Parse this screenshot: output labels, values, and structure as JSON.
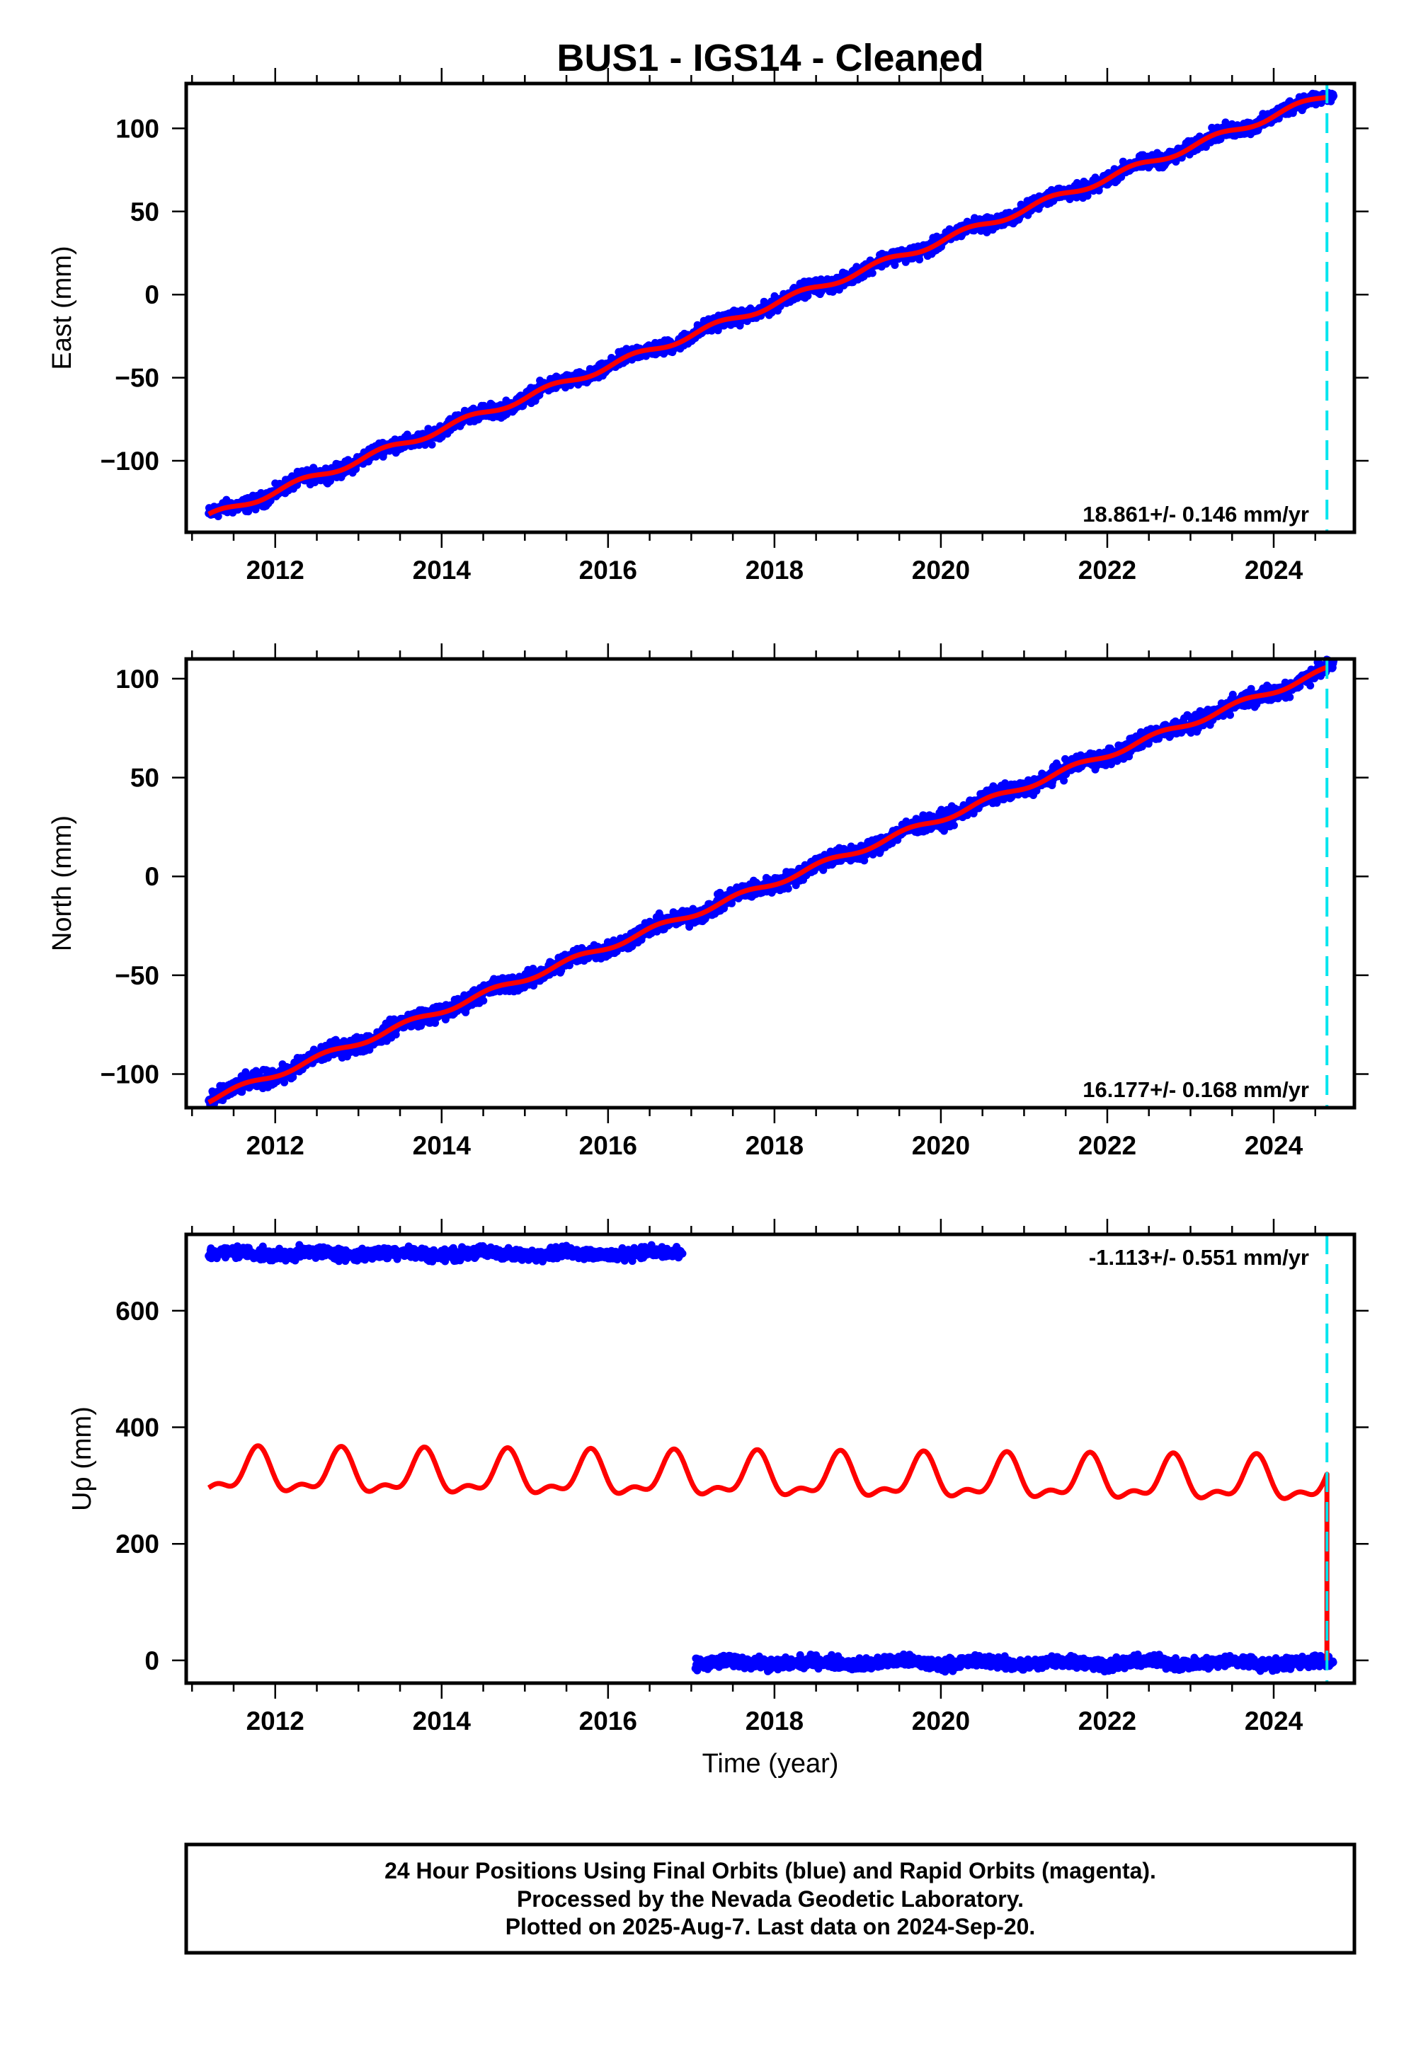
{
  "chart_data": {
    "type": "scatter",
    "title": "BUS1  - IGS14 - Cleaned",
    "xlabel": "Time (year)",
    "xlim": [
      2010.93,
      2024.97
    ],
    "xticks": [
      2012,
      2014,
      2016,
      2018,
      2020,
      2022,
      2024
    ],
    "xtick_labels": [
      "2012",
      "2014",
      "2016",
      "2018",
      "2020",
      "2022",
      "2024"
    ],
    "last_data_marker": 2024.64,
    "colors": {
      "final": "#0000ff",
      "model": "#ff0000",
      "marker": "#00e5ee"
    },
    "panels": [
      {
        "ylabel": "East (mm)",
        "ylim": [
          -143,
          127
        ],
        "yticks": [
          -100,
          -50,
          0,
          50,
          100
        ],
        "ytick_labels": [
          "−100",
          "−50",
          "0",
          "50",
          "100"
        ],
        "rate_text": "18.861+/- 0.146 mm/yr",
        "rate_position": "bottom-right",
        "model": {
          "ref_epoch": 2018.5,
          "intercept": 4,
          "rate": 18.861,
          "annual_amp": 2,
          "annual_peak": 0.3,
          "semiannual_amp": 0,
          "semiannual_peak": 0
        },
        "segments": [
          {
            "start": 2011.2,
            "end": 2024.72,
            "offset": 0,
            "noise": 3
          }
        ]
      },
      {
        "ylabel": "North (mm)",
        "ylim": [
          -117,
          110
        ],
        "yticks": [
          -100,
          -50,
          0,
          50,
          100
        ],
        "ytick_labels": [
          "−100",
          "−50",
          "0",
          "50",
          "100"
        ],
        "rate_text": "16.177+/- 0.168 mm/yr",
        "rate_position": "bottom-right",
        "model": {
          "ref_epoch": 2018.5,
          "intercept": 5,
          "rate": 16.177,
          "annual_amp": 1.5,
          "annual_peak": 0.6,
          "semiannual_amp": 0,
          "semiannual_peak": 0
        },
        "segments": [
          {
            "start": 2011.2,
            "end": 2024.72,
            "offset": 0,
            "noise": 3
          }
        ]
      },
      {
        "ylabel": "Up (mm)",
        "ylim": [
          -39,
          731
        ],
        "yticks": [
          0,
          200,
          400,
          600
        ],
        "ytick_labels": [
          "0",
          "200",
          "400",
          "600"
        ],
        "rate_text": "-1.113+/- 0.551 mm/yr",
        "rate_position": "top-right",
        "model": {
          "ref_epoch": 2018.5,
          "intercept": 312,
          "rate": -1.113,
          "annual_amp": 33,
          "annual_peak": 0.78,
          "semiannual_amp": 16,
          "semiannual_peak": 0.3
        },
        "model_end_value": 0,
        "segments": [
          {
            "start": 2011.2,
            "end": 2016.9,
            "level": 698,
            "noise": 7
          },
          {
            "start": 2017.05,
            "end": 2024.72,
            "level": -4,
            "noise": 7
          }
        ]
      }
    ]
  },
  "footer": {
    "line1": "24 Hour Positions Using Final Orbits (blue) and Rapid Orbits (magenta).",
    "line2": "Processed by the Nevada Geodetic Laboratory.",
    "line3": "Plotted on 2025-Aug-7. Last data on 2024-Sep-20."
  }
}
